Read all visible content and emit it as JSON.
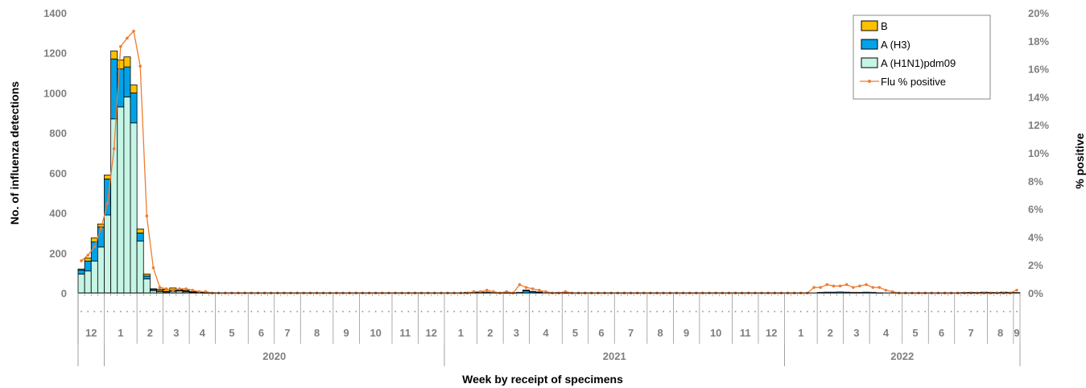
{
  "chart_data": {
    "type": "bar",
    "stacked": true,
    "xlabel": "Week by receipt of specimens",
    "ylabel": "No. of influenza detections",
    "y2label": "% positive",
    "ylim": [
      0,
      1400
    ],
    "yticks": [
      "0",
      "200",
      "400",
      "600",
      "800",
      "1000",
      "1200",
      "1400"
    ],
    "y2lim": [
      0,
      20
    ],
    "y2ticks": [
      "0%",
      "2%",
      "4%",
      "6%",
      "8%",
      "10%",
      "12%",
      "14%",
      "16%",
      "18%",
      "20%"
    ],
    "legend_position": "top-right",
    "legend": [
      "B",
      "A (H3)",
      "A (H1N1)pdm09",
      "Flu % positive"
    ],
    "colors": {
      "B": "#FFC000",
      "A (H3)": "#00A2E8",
      "A (H1N1)pdm09": "#C6F5E6",
      "Flu % positive": "#ED7D31"
    },
    "month_groups": [
      {
        "label": "12",
        "weeks": 4
      },
      {
        "label": "1",
        "weeks": 5
      },
      {
        "label": "2",
        "weeks": 4
      },
      {
        "label": "3",
        "weeks": 4
      },
      {
        "label": "4",
        "weeks": 4
      },
      {
        "label": "5",
        "weeks": 5
      },
      {
        "label": "6",
        "weeks": 4
      },
      {
        "label": "7",
        "weeks": 4
      },
      {
        "label": "8",
        "weeks": 5
      },
      {
        "label": "9",
        "weeks": 4
      },
      {
        "label": "10",
        "weeks": 5
      },
      {
        "label": "11",
        "weeks": 4
      },
      {
        "label": "12",
        "weeks": 4
      },
      {
        "label": "1",
        "weeks": 5
      },
      {
        "label": "2",
        "weeks": 4
      },
      {
        "label": "3",
        "weeks": 4
      },
      {
        "label": "4",
        "weeks": 5
      },
      {
        "label": "5",
        "weeks": 4
      },
      {
        "label": "6",
        "weeks": 4
      },
      {
        "label": "7",
        "weeks": 5
      },
      {
        "label": "8",
        "weeks": 4
      },
      {
        "label": "9",
        "weeks": 4
      },
      {
        "label": "10",
        "weeks": 5
      },
      {
        "label": "11",
        "weeks": 4
      },
      {
        "label": "12",
        "weeks": 4
      },
      {
        "label": "1",
        "weeks": 5
      },
      {
        "label": "2",
        "weeks": 4
      },
      {
        "label": "3",
        "weeks": 4
      },
      {
        "label": "4",
        "weeks": 5
      },
      {
        "label": "5",
        "weeks": 4
      },
      {
        "label": "6",
        "weeks": 4
      },
      {
        "label": "7",
        "weeks": 5
      },
      {
        "label": "8",
        "weeks": 4
      },
      {
        "label": "9",
        "weeks": 1
      }
    ],
    "years": [
      {
        "label": "2020",
        "start_month_index": 1,
        "end_month_index": 12
      },
      {
        "label": "2021",
        "start_month_index": 13,
        "end_month_index": 24
      },
      {
        "label": "2022",
        "start_month_index": 25,
        "end_month_index": 33
      }
    ],
    "series": [
      {
        "name": "A (H1N1)pdm09",
        "values": [
          95,
          110,
          160,
          230,
          390,
          870,
          930,
          980,
          850,
          260,
          70,
          12,
          8,
          5,
          8,
          10,
          6,
          3,
          2,
          1,
          1,
          0,
          0,
          0,
          0,
          0,
          0,
          0,
          0,
          0,
          0,
          0,
          0,
          0,
          0,
          0,
          0,
          0,
          0,
          0,
          0,
          0,
          0,
          0,
          0,
          0,
          0,
          0,
          0,
          0,
          0,
          0,
          0,
          0,
          0,
          0,
          0,
          0,
          0,
          0,
          0,
          0,
          0,
          0,
          0,
          0,
          0,
          0,
          0,
          0,
          0,
          0,
          0,
          0,
          0,
          0,
          0,
          0,
          0,
          0,
          0,
          0,
          0,
          0,
          0,
          0,
          0,
          0,
          0,
          0,
          0,
          0,
          0,
          0,
          0,
          0,
          0,
          0,
          0,
          0,
          0,
          0,
          0,
          0,
          0,
          0,
          0,
          0,
          0,
          0,
          0,
          0,
          0,
          0,
          0,
          0,
          0,
          0,
          0,
          0,
          0,
          0,
          0,
          0,
          0,
          0,
          0,
          0,
          0,
          0,
          0,
          0,
          0,
          0,
          0,
          0,
          0,
          0,
          0,
          0,
          0,
          0,
          0,
          0,
          0,
          0
        ]
      },
      {
        "name": "A (H3)",
        "values": [
          20,
          50,
          95,
          100,
          180,
          300,
          190,
          150,
          150,
          40,
          15,
          5,
          3,
          3,
          5,
          4,
          3,
          2,
          1,
          1,
          0,
          0,
          0,
          0,
          0,
          0,
          0,
          0,
          0,
          0,
          0,
          0,
          0,
          0,
          0,
          0,
          0,
          0,
          0,
          0,
          0,
          0,
          0,
          0,
          0,
          0,
          0,
          0,
          0,
          0,
          0,
          0,
          0,
          0,
          0,
          0,
          0,
          0,
          0,
          3,
          4,
          4,
          4,
          2,
          0,
          1,
          1,
          3,
          12,
          6,
          4,
          0,
          0,
          2,
          1,
          0,
          0,
          0,
          0,
          0,
          0,
          0,
          0,
          0,
          0,
          0,
          0,
          0,
          0,
          0,
          0,
          0,
          0,
          0,
          0,
          0,
          0,
          0,
          0,
          0,
          0,
          0,
          0,
          0,
          0,
          0,
          0,
          0,
          0,
          0,
          0,
          0,
          0,
          3,
          4,
          4,
          5,
          4,
          3,
          3,
          4,
          3,
          1,
          0,
          0,
          0,
          0,
          0,
          0,
          0,
          0,
          0,
          0,
          0,
          0,
          2,
          3,
          2,
          4,
          3,
          2,
          4,
          3,
          2,
          3,
          1,
          0,
          0
        ]
      },
      {
        "name": "B",
        "values": [
          5,
          15,
          20,
          15,
          20,
          40,
          45,
          50,
          40,
          20,
          10,
          4,
          8,
          10,
          12,
          5,
          5,
          2,
          1,
          0,
          0,
          0,
          0,
          0,
          0,
          0,
          0,
          0,
          0,
          0,
          0,
          0,
          0,
          0,
          0,
          0,
          0,
          0,
          0,
          0,
          0,
          0,
          0,
          0,
          0,
          0,
          0,
          0,
          0,
          0,
          0,
          0,
          0,
          0,
          0,
          0,
          0,
          0,
          0,
          0,
          0,
          0,
          0,
          0,
          0,
          0,
          0,
          0,
          3,
          2,
          1,
          0,
          0,
          0,
          0,
          0,
          0,
          0,
          0,
          0,
          0,
          0,
          0,
          0,
          0,
          0,
          0,
          0,
          0,
          0,
          0,
          0,
          0,
          0,
          0,
          0,
          0,
          0,
          0,
          0,
          0,
          0,
          0,
          0,
          0,
          0,
          0,
          0,
          0,
          0,
          0,
          0,
          0,
          0,
          0,
          0,
          0,
          0,
          0,
          0,
          0,
          0,
          0,
          0,
          0,
          0,
          0,
          0,
          0,
          0,
          0,
          0,
          0,
          0,
          0,
          0,
          0,
          0,
          0,
          0,
          0,
          0,
          0,
          0,
          0,
          0
        ]
      },
      {
        "name": "Flu % positive",
        "values": [
          2.3,
          2.7,
          3.3,
          4.6,
          6.4,
          10.3,
          17.6,
          18.2,
          18.7,
          16.2,
          5.5,
          1.8,
          0.4,
          0.3,
          0.2,
          0.3,
          0.3,
          0.2,
          0.1,
          0.1,
          0,
          0,
          0,
          0,
          0,
          0,
          0,
          0,
          0,
          0,
          0,
          0,
          0,
          0,
          0,
          0,
          0,
          0,
          0,
          0,
          0,
          0,
          0,
          0,
          0,
          0,
          0,
          0,
          0,
          0,
          0,
          0,
          0,
          0,
          0,
          0,
          0,
          0,
          0,
          0,
          0.1,
          0.1,
          0.2,
          0.1,
          0,
          0.1,
          0,
          0.6,
          0.4,
          0.3,
          0.2,
          0.1,
          0,
          0,
          0.1,
          0,
          0,
          0,
          0,
          0,
          0,
          0,
          0,
          0,
          0,
          0,
          0,
          0,
          0,
          0,
          0,
          0,
          0,
          0,
          0,
          0,
          0,
          0,
          0,
          0,
          0,
          0,
          0,
          0,
          0,
          0,
          0,
          0,
          0,
          0,
          0,
          0,
          0.4,
          0.4,
          0.6,
          0.5,
          0.5,
          0.6,
          0.4,
          0.5,
          0.6,
          0.4,
          0.4,
          0.2,
          0.1,
          0,
          0,
          0,
          0,
          0,
          0,
          0,
          0,
          0,
          0,
          0,
          0,
          0,
          0,
          0,
          0,
          0,
          0,
          0.2,
          0.1,
          0.1,
          0.1,
          0.1,
          0.6,
          0.3,
          0.2,
          0.1,
          0.1,
          0.1,
          0.2,
          0.1,
          0.1,
          0,
          0.1,
          0,
          0
        ]
      }
    ]
  }
}
